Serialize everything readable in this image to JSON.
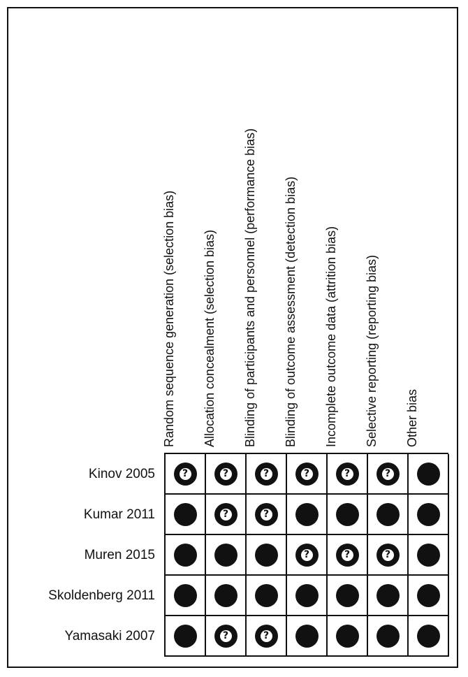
{
  "domains": [
    "Random sequence generation (selection bias)",
    "Allocation concealment (selection bias)",
    "Blinding of participants and personnel (performance bias)",
    "Blinding of outcome assessment (detection bias)",
    "Incomplete outcome data (attrition bias)",
    "Selective reporting (reporting bias)",
    "Other bias"
  ],
  "studies": [
    {
      "name": "Kinov 2005",
      "judgements": [
        "unclear",
        "unclear",
        "unclear",
        "unclear",
        "unclear",
        "unclear",
        "low"
      ]
    },
    {
      "name": "Kumar 2011",
      "judgements": [
        "low",
        "unclear",
        "unclear",
        "low",
        "low",
        "low",
        "low"
      ]
    },
    {
      "name": "Muren 2015",
      "judgements": [
        "low",
        "low",
        "low",
        "unclear",
        "unclear",
        "unclear",
        "low"
      ]
    },
    {
      "name": "Skoldenberg 2011",
      "judgements": [
        "low",
        "low",
        "low",
        "low",
        "low",
        "low",
        "low"
      ]
    },
    {
      "name": "Yamasaki 2007",
      "judgements": [
        "low",
        "unclear",
        "unclear",
        "low",
        "low",
        "low",
        "low"
      ]
    }
  ],
  "symbols": {
    "unclear_glyph": "?",
    "unclear_icon": "question-mark-circle",
    "low_icon": "filled-circle",
    "dot_color": "#111111"
  }
}
